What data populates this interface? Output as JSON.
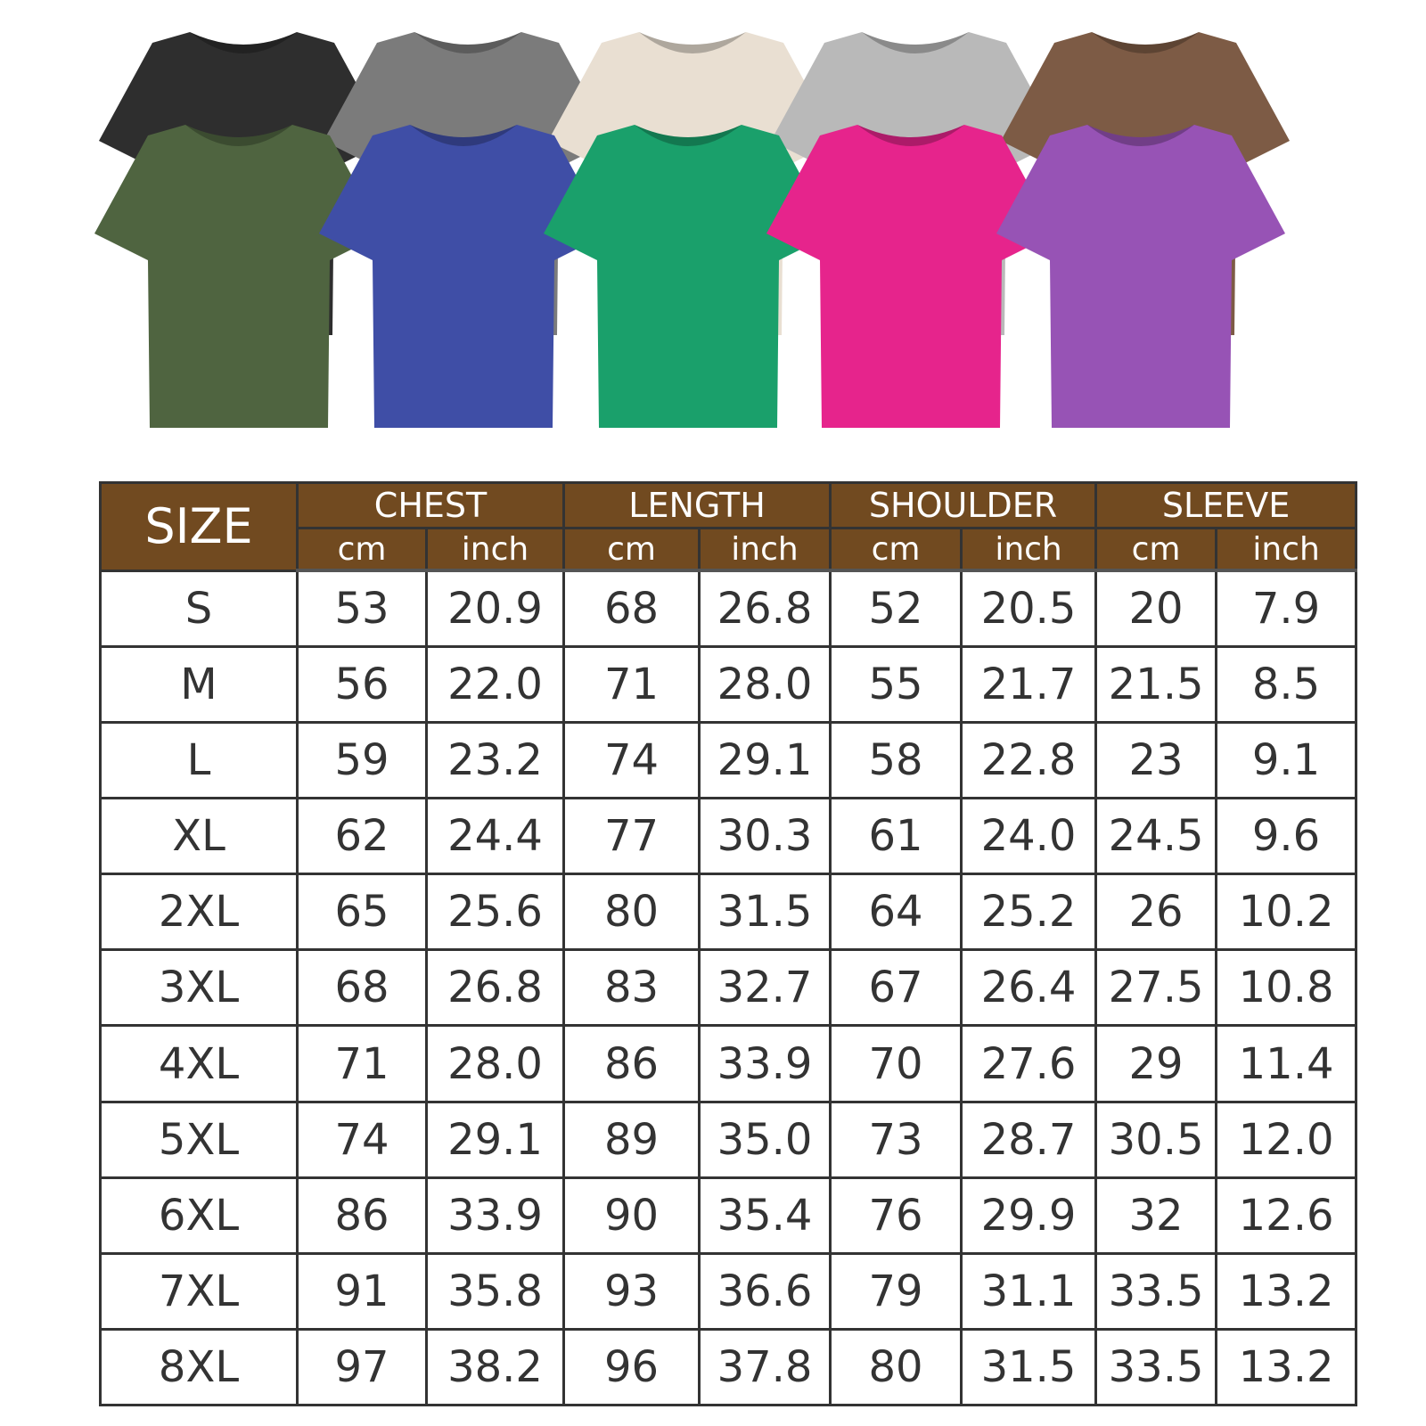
{
  "shirt_colors": {
    "back_row": [
      "#2e2e2e",
      "#7b7b7b",
      "#e9dfd2",
      "#b9b9b9",
      "#7d5b45"
    ],
    "front_row": [
      "#4f6440",
      "#3f4ea6",
      "#1aa06b",
      "#e6248c",
      "#9753b5"
    ]
  },
  "header": {
    "size_label": "SIZE",
    "groups": [
      "CHEST",
      "LENGTH",
      "SHOULDER",
      "SLEEVE"
    ],
    "units": [
      "cm",
      "inch"
    ],
    "header_color": "#714a20"
  },
  "rows": [
    {
      "size": "S",
      "values": [
        "53",
        "20.9",
        "68",
        "26.8",
        "52",
        "20.5",
        "20",
        "7.9"
      ]
    },
    {
      "size": "M",
      "values": [
        "56",
        "22.0",
        "71",
        "28.0",
        "55",
        "21.7",
        "21.5",
        "8.5"
      ]
    },
    {
      "size": "L",
      "values": [
        "59",
        "23.2",
        "74",
        "29.1",
        "58",
        "22.8",
        "23",
        "9.1"
      ]
    },
    {
      "size": "XL",
      "values": [
        "62",
        "24.4",
        "77",
        "30.3",
        "61",
        "24.0",
        "24.5",
        "9.6"
      ]
    },
    {
      "size": "2XL",
      "values": [
        "65",
        "25.6",
        "80",
        "31.5",
        "64",
        "25.2",
        "26",
        "10.2"
      ]
    },
    {
      "size": "3XL",
      "values": [
        "68",
        "26.8",
        "83",
        "32.7",
        "67",
        "26.4",
        "27.5",
        "10.8"
      ]
    },
    {
      "size": "4XL",
      "values": [
        "71",
        "28.0",
        "86",
        "33.9",
        "70",
        "27.6",
        "29",
        "11.4"
      ]
    },
    {
      "size": "5XL",
      "values": [
        "74",
        "29.1",
        "89",
        "35.0",
        "73",
        "28.7",
        "30.5",
        "12.0"
      ]
    },
    {
      "size": "6XL",
      "values": [
        "86",
        "33.9",
        "90",
        "35.4",
        "76",
        "29.9",
        "32",
        "12.6"
      ]
    },
    {
      "size": "7XL",
      "values": [
        "91",
        "35.8",
        "93",
        "36.6",
        "79",
        "31.1",
        "33.5",
        "13.2"
      ]
    },
    {
      "size": "8XL",
      "values": [
        "97",
        "38.2",
        "96",
        "37.8",
        "80",
        "31.5",
        "33.5",
        "13.2"
      ]
    }
  ]
}
